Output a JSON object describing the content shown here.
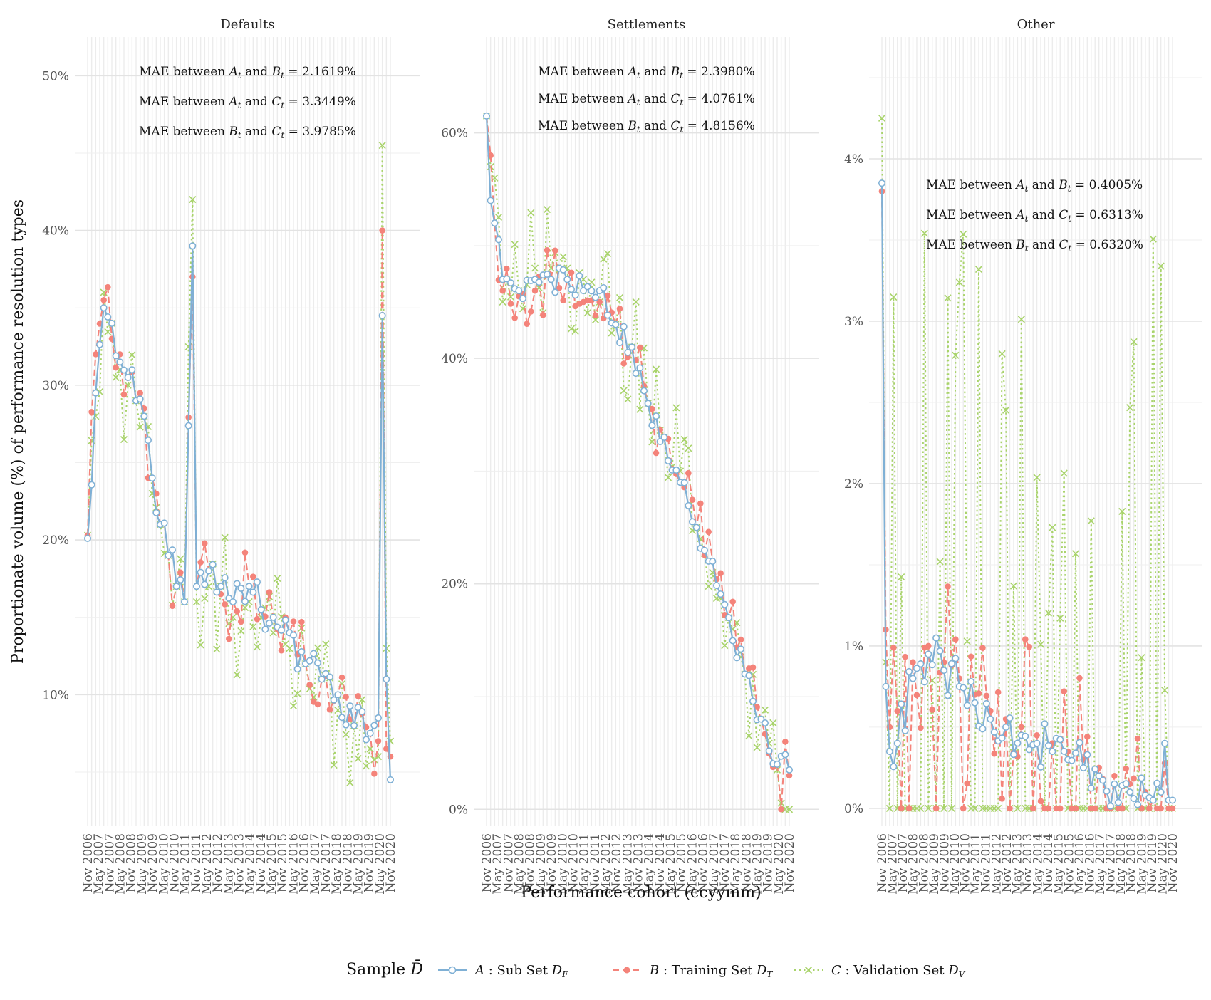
{
  "chart_data": {
    "type": "line",
    "ylabel": "Proportionate volume (%) of performance resolution types",
    "xlabel": "Performance cohort (ccyymm)",
    "x_ticks": [
      "Nov 2006",
      "May 2007",
      "Nov 2007",
      "May 2008",
      "Nov 2008",
      "May 2009",
      "Nov 2009",
      "May 2010",
      "Nov 2010",
      "May 2011",
      "Nov 2011",
      "May 2012",
      "Nov 2012",
      "May 2013",
      "Nov 2013",
      "May 2014",
      "Nov 2014",
      "May 2015",
      "Nov 2015",
      "May 2016",
      "Nov 2016",
      "May 2017",
      "Nov 2017",
      "May 2018",
      "Nov 2018",
      "May 2019",
      "Nov 2019",
      "May 2020",
      "Nov 2020"
    ],
    "x_start": "2006-11",
    "x_end": "2020-11",
    "legend": {
      "title": "Sample",
      "title_symbol": "D̄",
      "placement": "bottom",
      "items": [
        {
          "series": "A",
          "letter": "A",
          "desc": ": Sub Set",
          "subset": "D",
          "sub": "F",
          "color": "#7FB0D5",
          "marker": "open-circle",
          "dash": "solid"
        },
        {
          "series": "B",
          "letter": "B",
          "desc": ": Training Set",
          "subset": "D",
          "sub": "T",
          "color": "#F4837A",
          "marker": "filled-circle",
          "dash": "dashed"
        },
        {
          "series": "C",
          "letter": "C",
          "desc": ": Validation Set",
          "subset": "D",
          "sub": "V",
          "color": "#A8D36A",
          "marker": "cross",
          "dash": "dotted"
        }
      ]
    },
    "panels": [
      {
        "title": "Defaults",
        "ylim": [
          1.5,
          52.5
        ],
        "y_ticks": [
          10,
          20,
          30,
          40,
          50
        ],
        "y_tick_labels": [
          "10%",
          "20%",
          "30%",
          "40%",
          "50%"
        ],
        "mae": [
          {
            "left": "MAE between",
            "p1": "A",
            "p2": "B",
            "value": "= 2.1619%"
          },
          {
            "left": "MAE between",
            "p1": "A",
            "p2": "C",
            "value": "= 3.3449%"
          },
          {
            "left": "MAE between",
            "p1": "B",
            "p2": "C",
            "value": "= 3.9785%"
          }
        ],
        "anchors": {
          "A": [
            [
              0,
              20.1
            ],
            [
              2,
              29.5
            ],
            [
              4,
              35
            ],
            [
              6,
              34
            ],
            [
              8,
              31.5
            ],
            [
              10,
              30.5
            ],
            [
              12,
              29
            ],
            [
              14,
              28
            ],
            [
              16,
              24
            ],
            [
              18,
              21
            ],
            [
              20,
              19
            ],
            [
              22,
              17
            ],
            [
              24,
              16
            ],
            [
              26,
              39
            ],
            [
              27,
              17
            ],
            [
              30,
              18
            ],
            [
              33,
              17
            ],
            [
              36,
              16
            ],
            [
              40,
              17
            ],
            [
              43,
              15.5
            ],
            [
              46,
              15
            ],
            [
              50,
              14
            ],
            [
              54,
              12
            ],
            [
              58,
              11
            ],
            [
              62,
              10
            ],
            [
              66,
              8
            ],
            [
              70,
              7.5
            ],
            [
              72,
              8.5
            ],
            [
              73,
              34.5
            ],
            [
              74,
              11
            ],
            [
              75,
              4.5
            ]
          ],
          "B": [
            [
              0,
              20.3
            ],
            [
              2,
              32
            ],
            [
              4,
              35.5
            ],
            [
              6,
              33
            ],
            [
              8,
              32
            ],
            [
              10,
              30.5
            ],
            [
              12,
              29
            ],
            [
              14,
              28.5
            ],
            [
              16,
              24
            ],
            [
              18,
              21
            ],
            [
              20,
              19
            ],
            [
              22,
              17
            ],
            [
              24,
              16
            ],
            [
              26,
              37
            ],
            [
              27,
              17
            ],
            [
              30,
              18
            ],
            [
              33,
              16.5
            ],
            [
              36,
              16
            ],
            [
              40,
              17
            ],
            [
              43,
              15.5
            ],
            [
              46,
              15
            ],
            [
              50,
              14
            ],
            [
              54,
              12
            ],
            [
              58,
              11
            ],
            [
              62,
              10
            ],
            [
              66,
              8
            ],
            [
              70,
              7.5
            ],
            [
              72,
              7
            ],
            [
              73,
              40
            ],
            [
              74,
              6.5
            ],
            [
              75,
              6
            ]
          ],
          "C": [
            [
              0,
              20.3
            ],
            [
              2,
              28
            ],
            [
              4,
              36
            ],
            [
              6,
              34
            ],
            [
              8,
              31
            ],
            [
              10,
              30
            ],
            [
              12,
              29
            ],
            [
              14,
              28
            ],
            [
              16,
              23
            ],
            [
              18,
              21
            ],
            [
              20,
              19
            ],
            [
              22,
              17
            ],
            [
              24,
              16
            ],
            [
              26,
              42
            ],
            [
              27,
              16
            ],
            [
              30,
              17
            ],
            [
              33,
              17
            ],
            [
              36,
              15
            ],
            [
              40,
              16
            ],
            [
              43,
              15
            ],
            [
              46,
              14
            ],
            [
              50,
              13
            ],
            [
              54,
              12
            ],
            [
              58,
              11
            ],
            [
              62,
              9
            ],
            [
              66,
              8
            ],
            [
              70,
              6.5
            ],
            [
              72,
              6
            ],
            [
              73,
              45.5
            ],
            [
              74,
              13
            ],
            [
              75,
              7
            ]
          ]
        },
        "noise": {
          "A": 1.4,
          "B": 2.6,
          "C": 4.2
        }
      },
      {
        "title": "Settlements",
        "ylim": [
          -1.5,
          68.5
        ],
        "y_ticks": [
          0,
          20,
          40,
          60
        ],
        "y_tick_labels": [
          "0%",
          "20%",
          "40%",
          "60%"
        ],
        "mae": [
          {
            "left": "MAE between",
            "p1": "A",
            "p2": "B",
            "value": "= 2.3980%"
          },
          {
            "left": "MAE between",
            "p1": "A",
            "p2": "C",
            "value": "= 4.0761%"
          },
          {
            "left": "MAE between",
            "p1": "B",
            "p2": "C",
            "value": "= 4.8156%"
          }
        ],
        "anchors": {
          "A": [
            [
              0,
              61.5
            ],
            [
              1,
              54
            ],
            [
              2,
              52
            ],
            [
              4,
              47
            ],
            [
              8,
              46
            ],
            [
              12,
              47
            ],
            [
              16,
              47
            ],
            [
              20,
              47
            ],
            [
              24,
              46
            ],
            [
              28,
              46
            ],
            [
              32,
              43
            ],
            [
              36,
              41
            ],
            [
              40,
              36
            ],
            [
              44,
              33
            ],
            [
              48,
              29
            ],
            [
              52,
              25
            ],
            [
              56,
              22
            ],
            [
              60,
              17
            ],
            [
              64,
              12
            ],
            [
              68,
              8
            ],
            [
              72,
              4
            ],
            [
              75,
              3.5
            ]
          ],
          "B": [
            [
              0,
              61.5
            ],
            [
              1,
              58
            ],
            [
              2,
              52
            ],
            [
              4,
              46
            ],
            [
              8,
              45.5
            ],
            [
              12,
              46
            ],
            [
              16,
              47
            ],
            [
              20,
              47
            ],
            [
              24,
              45
            ],
            [
              28,
              45
            ],
            [
              32,
              43
            ],
            [
              36,
              41
            ],
            [
              40,
              36
            ],
            [
              44,
              33
            ],
            [
              48,
              29
            ],
            [
              52,
              25
            ],
            [
              56,
              22
            ],
            [
              60,
              17
            ],
            [
              64,
              12
            ],
            [
              68,
              8
            ],
            [
              72,
              4
            ],
            [
              73,
              0
            ],
            [
              74,
              6
            ],
            [
              75,
              3
            ]
          ],
          "C": [
            [
              0,
              61.5
            ],
            [
              1,
              57
            ],
            [
              2,
              56
            ],
            [
              4,
              45
            ],
            [
              8,
              46
            ],
            [
              12,
              48
            ],
            [
              16,
              48
            ],
            [
              20,
              48
            ],
            [
              24,
              47
            ],
            [
              28,
              45
            ],
            [
              32,
              43
            ],
            [
              36,
              41
            ],
            [
              40,
              36
            ],
            [
              44,
              33
            ],
            [
              48,
              30
            ],
            [
              52,
              25
            ],
            [
              56,
              21
            ],
            [
              60,
              17
            ],
            [
              64,
              12
            ],
            [
              68,
              8
            ],
            [
              72,
              3.5
            ],
            [
              75,
              0
            ]
          ]
        },
        "noise": {
          "A": 1.2,
          "B": 3.0,
          "C": 5.5
        }
      },
      {
        "title": "Other",
        "ylim": [
          -0.11,
          4.75
        ],
        "y_ticks": [
          0,
          1,
          2,
          3,
          4
        ],
        "y_tick_labels": [
          "0%",
          "1%",
          "2%",
          "3%",
          "4%"
        ],
        "mae": [
          {
            "left": "MAE between",
            "p1": "A",
            "p2": "B",
            "value": "= 0.4005%"
          },
          {
            "left": "MAE between",
            "p1": "A",
            "p2": "C",
            "value": "= 0.6313%"
          },
          {
            "left": "MAE between",
            "p1": "B",
            "p2": "C",
            "value": "= 0.6320%"
          }
        ],
        "anchors": {
          "A": [
            [
              0,
              3.85
            ],
            [
              1,
              0.75
            ],
            [
              2,
              0.35
            ],
            [
              4,
              0.4
            ],
            [
              8,
              0.8
            ],
            [
              12,
              0.95
            ],
            [
              16,
              0.85
            ],
            [
              20,
              0.75
            ],
            [
              24,
              0.65
            ],
            [
              28,
              0.55
            ],
            [
              32,
              0.5
            ],
            [
              36,
              0.45
            ],
            [
              40,
              0.4
            ],
            [
              44,
              0.35
            ],
            [
              48,
              0.3
            ],
            [
              52,
              0.25
            ],
            [
              56,
              0.2
            ],
            [
              60,
              0.15
            ],
            [
              64,
              0.1
            ],
            [
              68,
              0.08
            ],
            [
              70,
              0.05
            ],
            [
              72,
              0.1
            ],
            [
              73,
              0.4
            ],
            [
              74,
              0.05
            ],
            [
              75,
              0.05
            ]
          ],
          "B": [
            [
              0,
              3.8
            ],
            [
              1,
              1.1
            ],
            [
              2,
              0.5
            ],
            [
              4,
              0.6
            ],
            [
              8,
              0.9
            ],
            [
              12,
              1.0
            ],
            [
              16,
              0.9
            ],
            [
              20,
              0.8
            ],
            [
              24,
              0.7
            ],
            [
              28,
              0.6
            ],
            [
              32,
              0.55
            ],
            [
              36,
              0.5
            ],
            [
              40,
              0.45
            ],
            [
              44,
              0.4
            ],
            [
              48,
              0.35
            ],
            [
              52,
              0.3
            ],
            [
              56,
              0.25
            ],
            [
              60,
              0.2
            ],
            [
              64,
              0.15
            ],
            [
              68,
              0.1
            ],
            [
              70,
              0.05
            ],
            [
              75,
              0.0
            ]
          ],
          "C": [
            [
              0,
              4.25
            ],
            [
              1,
              0.9
            ],
            [
              2,
              0.0
            ],
            [
              75,
              0.0
            ]
          ]
        },
        "noise": {
          "A": 0.15,
          "B": 0.6,
          "C": 1.2
        }
      }
    ]
  }
}
